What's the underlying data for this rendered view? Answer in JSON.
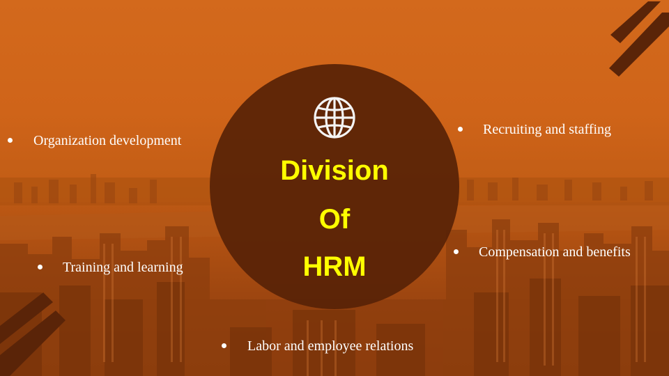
{
  "slide": {
    "title_lines": [
      "Division",
      "Of",
      "HRM"
    ],
    "icon": "globe-icon",
    "bullets": {
      "organization": "Organization development",
      "training": "Training  and learning",
      "labor": "Labor and employee relations",
      "recruiting": "Recruiting and staffing",
      "compensation": "Compensation and benefits"
    }
  },
  "colors": {
    "background_overlay": "#c15a14",
    "circle": "#582206",
    "title": "#ffff00",
    "bullet_text": "#ffffff",
    "accent_stripes": "#5a2408"
  }
}
